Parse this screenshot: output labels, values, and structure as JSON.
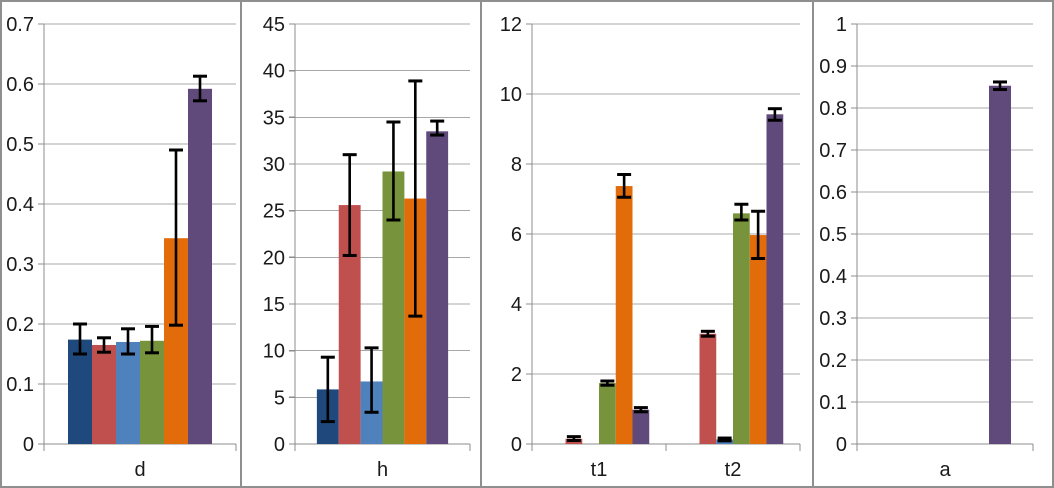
{
  "figure": {
    "background": "#FFFFFF",
    "border_color": "#8F8F8F",
    "gridline_color": "#A8A8A8",
    "axis_color": "#8C8C8C",
    "error_bar_color": "#000000",
    "text_color": "#1A1A1A"
  },
  "chart_data": [
    {
      "type": "bar",
      "categories": [
        "d"
      ],
      "ylim": [
        0,
        0.7
      ],
      "ytick_step": 0.1,
      "ytick_labels": [
        "0",
        "0.1",
        "0.2",
        "0.3",
        "0.4",
        "0.5",
        "0.6",
        "0.7"
      ],
      "grid": true,
      "legend": "none",
      "series": [
        {
          "name": "navy",
          "color": "#1F497D",
          "values": [
            0.174
          ],
          "err_low": [
            0.15
          ],
          "err_high": [
            0.2
          ]
        },
        {
          "name": "red",
          "color": "#C0504D",
          "values": [
            0.165
          ],
          "err_low": [
            0.153
          ],
          "err_high": [
            0.177
          ]
        },
        {
          "name": "blue",
          "color": "#4F81BD",
          "values": [
            0.17
          ],
          "err_low": [
            0.15
          ],
          "err_high": [
            0.192
          ]
        },
        {
          "name": "olive",
          "color": "#77933C",
          "values": [
            0.172
          ],
          "err_low": [
            0.152
          ],
          "err_high": [
            0.196
          ]
        },
        {
          "name": "orange",
          "color": "#E36C0A",
          "values": [
            0.343
          ],
          "err_low": [
            0.198
          ],
          "err_high": [
            0.49
          ]
        },
        {
          "name": "purple",
          "color": "#604A7B",
          "values": [
            0.592
          ],
          "err_low": [
            0.572
          ],
          "err_high": [
            0.613
          ]
        }
      ]
    },
    {
      "type": "bar",
      "categories": [
        "h"
      ],
      "ylim": [
        0,
        45
      ],
      "ytick_step": 5,
      "ytick_labels": [
        "0",
        "5",
        "10",
        "15",
        "20",
        "25",
        "30",
        "35",
        "40",
        "45"
      ],
      "grid": true,
      "legend": "none",
      "series": [
        {
          "name": "navy",
          "color": "#1F497D",
          "values": [
            5.85
          ],
          "err_low": [
            2.4
          ],
          "err_high": [
            9.3
          ]
        },
        {
          "name": "red",
          "color": "#C0504D",
          "values": [
            25.6
          ],
          "err_low": [
            20.2
          ],
          "err_high": [
            31.0
          ]
        },
        {
          "name": "blue",
          "color": "#4F81BD",
          "values": [
            6.7
          ],
          "err_low": [
            3.4
          ],
          "err_high": [
            10.3
          ]
        },
        {
          "name": "olive",
          "color": "#77933C",
          "values": [
            29.2
          ],
          "err_low": [
            24.0
          ],
          "err_high": [
            34.5
          ]
        },
        {
          "name": "orange",
          "color": "#E36C0A",
          "values": [
            26.3
          ],
          "err_low": [
            13.7
          ],
          "err_high": [
            38.9
          ]
        },
        {
          "name": "purple",
          "color": "#604A7B",
          "values": [
            33.5
          ],
          "err_low": [
            33.1
          ],
          "err_high": [
            34.6
          ]
        }
      ]
    },
    {
      "type": "bar",
      "categories": [
        "t1",
        "t2"
      ],
      "ylim": [
        0,
        12
      ],
      "ytick_step": 2,
      "ytick_labels": [
        "0",
        "2",
        "4",
        "6",
        "8",
        "10",
        "12"
      ],
      "grid": true,
      "legend": "none",
      "series": [
        {
          "name": "navy",
          "color": "#1F497D",
          "values": [
            0,
            0
          ],
          "err_low": [
            null,
            null
          ],
          "err_high": [
            null,
            null
          ]
        },
        {
          "name": "red",
          "color": "#C0504D",
          "values": [
            0.15,
            3.15
          ],
          "err_low": [
            0.1,
            3.08
          ],
          "err_high": [
            0.21,
            3.22
          ]
        },
        {
          "name": "blue",
          "color": "#4F81BD",
          "values": [
            0,
            0.13
          ],
          "err_low": [
            null,
            0.09
          ],
          "err_high": [
            null,
            0.17
          ]
        },
        {
          "name": "olive",
          "color": "#77933C",
          "values": [
            1.74,
            6.59
          ],
          "err_low": [
            1.68,
            6.4
          ],
          "err_high": [
            1.8,
            6.85
          ]
        },
        {
          "name": "orange",
          "color": "#E36C0A",
          "values": [
            7.37,
            5.97
          ],
          "err_low": [
            7.05,
            5.3
          ],
          "err_high": [
            7.7,
            6.65
          ]
        },
        {
          "name": "purple",
          "color": "#604A7B",
          "values": [
            0.98,
            9.42
          ],
          "err_low": [
            0.92,
            9.25
          ],
          "err_high": [
            1.04,
            9.58
          ]
        }
      ]
    },
    {
      "type": "bar",
      "categories": [
        "a"
      ],
      "ylim": [
        0,
        1
      ],
      "ytick_step": 0.1,
      "ytick_labels": [
        "0",
        "0.1",
        "0.2",
        "0.3",
        "0.4",
        "0.5",
        "0.6",
        "0.7",
        "0.8",
        "0.9",
        "1"
      ],
      "grid": true,
      "legend": "none",
      "series": [
        {
          "name": "navy",
          "color": "#1F497D",
          "values": [
            0
          ],
          "err_low": [
            null
          ],
          "err_high": [
            null
          ]
        },
        {
          "name": "red",
          "color": "#C0504D",
          "values": [
            0
          ],
          "err_low": [
            null
          ],
          "err_high": [
            null
          ]
        },
        {
          "name": "blue",
          "color": "#4F81BD",
          "values": [
            0
          ],
          "err_low": [
            null
          ],
          "err_high": [
            null
          ]
        },
        {
          "name": "olive",
          "color": "#77933C",
          "values": [
            0
          ],
          "err_low": [
            null
          ],
          "err_high": [
            null
          ]
        },
        {
          "name": "orange",
          "color": "#E36C0A",
          "values": [
            0
          ],
          "err_low": [
            null
          ],
          "err_high": [
            null
          ]
        },
        {
          "name": "purple",
          "color": "#604A7B",
          "values": [
            0.853
          ],
          "err_low": [
            0.844
          ],
          "err_high": [
            0.862
          ]
        }
      ]
    }
  ]
}
